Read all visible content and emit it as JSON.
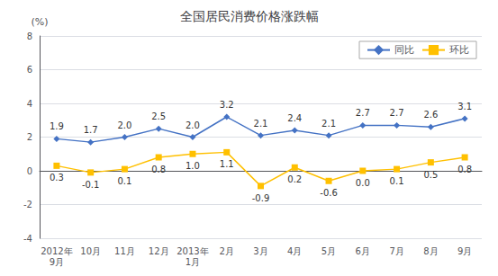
{
  "chart_data": {
    "type": "line",
    "title": "全国居民消费价格涨跌幅",
    "ylabel": "(%)",
    "categories": [
      "2012年\n9月",
      "10月",
      "11月",
      "12月",
      "2013年\n1月",
      "2月",
      "3月",
      "4月",
      "5月",
      "6月",
      "7月",
      "8月",
      "9月"
    ],
    "series": [
      {
        "name": "同比",
        "color": "#4472C4",
        "marker": "diamond",
        "values": [
          1.9,
          1.7,
          2.0,
          2.5,
          2.0,
          3.2,
          2.1,
          2.4,
          2.1,
          2.7,
          2.7,
          2.6,
          3.1
        ],
        "value_labels": [
          "1.9",
          "1.7",
          "2.0",
          "2.5",
          "2.0",
          "3.2",
          "2.1",
          "2.4",
          "2.1",
          "2.7",
          "2.7",
          "2.6",
          "3.1"
        ]
      },
      {
        "name": "环比",
        "color": "#FFC000",
        "marker": "square",
        "values": [
          0.3,
          -0.1,
          0.1,
          0.8,
          1.0,
          1.1,
          -0.9,
          0.2,
          -0.6,
          0.0,
          0.1,
          0.5,
          0.8
        ],
        "value_labels": [
          "0.3",
          "-0.1",
          "0.1",
          "0.8",
          "1.0",
          "1.1",
          "-0.9",
          "0.2",
          "-0.6",
          "0.0",
          "0.1",
          "0.5",
          "0.8"
        ]
      }
    ],
    "ylim": [
      -4,
      8
    ],
    "yticks": [
      -4,
      -2,
      0,
      2,
      4,
      6,
      8
    ],
    "grid": true,
    "legend": "upper right",
    "data_labels": true
  }
}
